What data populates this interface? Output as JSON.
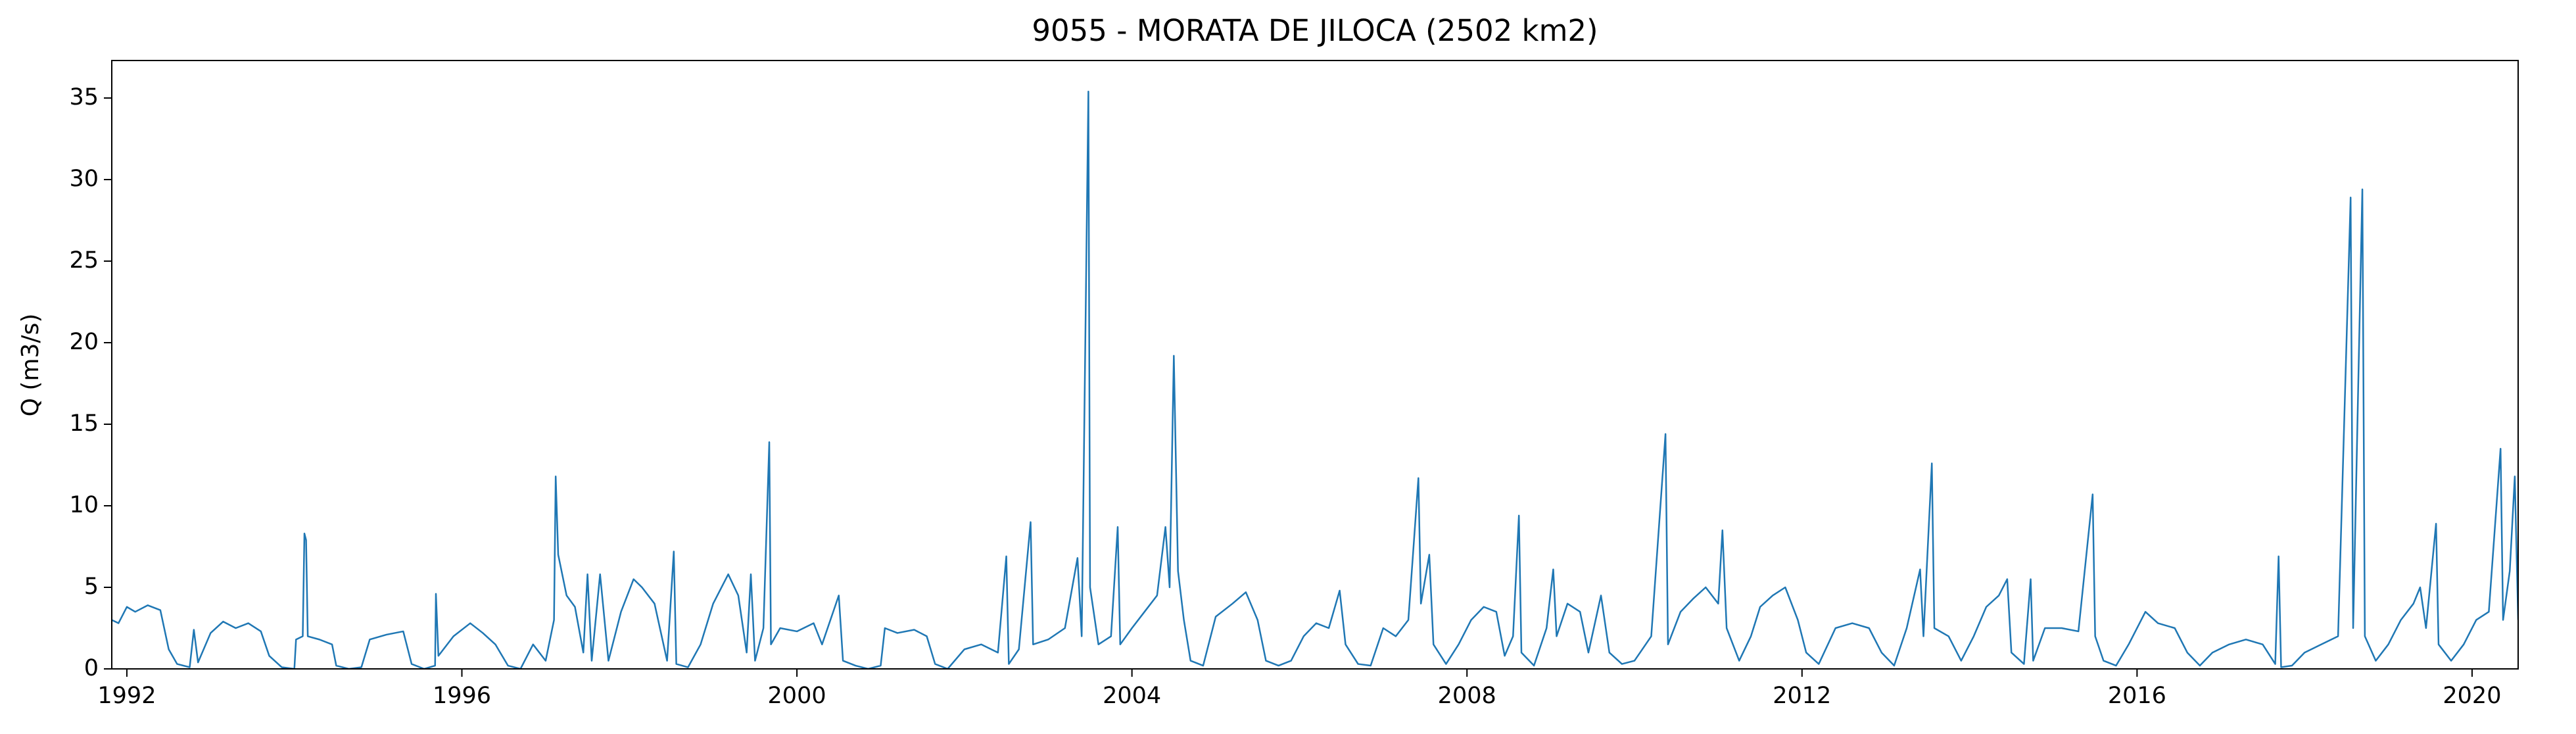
{
  "chart_data": {
    "type": "line",
    "title": "9055 - MORATA DE JILOCA (2502 km2)",
    "y_label": "Q (m3/s)",
    "color": "#1f77b4",
    "x": [
      1991.82,
      1991.9,
      1992.0,
      1992.1,
      1992.25,
      1992.4,
      1992.5,
      1992.6,
      1992.75,
      1992.8,
      1992.85,
      1993.0,
      1993.15,
      1993.3,
      1993.45,
      1993.6,
      1993.7,
      1993.85,
      1994.0,
      1994.02,
      1994.1,
      1994.12,
      1994.14,
      1994.16,
      1994.3,
      1994.45,
      1994.5,
      1994.65,
      1994.8,
      1994.9,
      1995.1,
      1995.3,
      1995.4,
      1995.55,
      1995.68,
      1995.69,
      1995.72,
      1995.9,
      1996.1,
      1996.25,
      1996.4,
      1996.55,
      1996.7,
      1996.85,
      1997.0,
      1997.1,
      1997.12,
      1997.15,
      1997.25,
      1997.35,
      1997.45,
      1997.5,
      1997.55,
      1997.65,
      1997.75,
      1997.9,
      1998.05,
      1998.15,
      1998.3,
      1998.45,
      1998.53,
      1998.56,
      1998.7,
      1998.85,
      1999.0,
      1999.18,
      1999.3,
      1999.4,
      1999.45,
      1999.5,
      1999.6,
      1999.67,
      1999.69,
      1999.8,
      2000.0,
      2000.2,
      2000.3,
      2000.5,
      2000.55,
      2000.7,
      2000.85,
      2001.0,
      2001.05,
      2001.2,
      2001.4,
      2001.55,
      2001.65,
      2001.8,
      2002.0,
      2002.2,
      2002.4,
      2002.5,
      2002.53,
      2002.65,
      2002.79,
      2002.82,
      2003.0,
      2003.2,
      2003.35,
      2003.4,
      2003.48,
      2003.5,
      2003.6,
      2003.75,
      2003.83,
      2003.86,
      2004.0,
      2004.15,
      2004.3,
      2004.4,
      2004.45,
      2004.5,
      2004.55,
      2004.62,
      2004.7,
      2004.85,
      2005.0,
      2005.2,
      2005.36,
      2005.5,
      2005.6,
      2005.75,
      2005.9,
      2006.05,
      2006.2,
      2006.35,
      2006.48,
      2006.55,
      2006.7,
      2006.85,
      2007.0,
      2007.15,
      2007.3,
      2007.42,
      2007.45,
      2007.55,
      2007.6,
      2007.75,
      2007.9,
      2008.05,
      2008.2,
      2008.35,
      2008.45,
      2008.55,
      2008.62,
      2008.65,
      2008.8,
      2008.95,
      2009.03,
      2009.07,
      2009.2,
      2009.35,
      2009.45,
      2009.6,
      2009.7,
      2009.85,
      2010.0,
      2010.2,
      2010.37,
      2010.4,
      2010.55,
      2010.7,
      2010.85,
      2011.0,
      2011.05,
      2011.1,
      2011.25,
      2011.39,
      2011.5,
      2011.65,
      2011.8,
      2011.95,
      2012.05,
      2012.2,
      2012.4,
      2012.6,
      2012.8,
      2012.95,
      2013.1,
      2013.25,
      2013.41,
      2013.45,
      2013.55,
      2013.58,
      2013.75,
      2013.9,
      2014.05,
      2014.2,
      2014.35,
      2014.45,
      2014.5,
      2014.65,
      2014.73,
      2014.76,
      2014.9,
      2015.1,
      2015.3,
      2015.47,
      2015.5,
      2015.6,
      2015.75,
      2015.9,
      2016.1,
      2016.25,
      2016.45,
      2016.6,
      2016.75,
      2016.9,
      2017.1,
      2017.3,
      2017.5,
      2017.65,
      2017.69,
      2017.72,
      2017.85,
      2018.0,
      2018.2,
      2018.4,
      2018.55,
      2018.58,
      2018.69,
      2018.72,
      2018.85,
      2019.0,
      2019.15,
      2019.3,
      2019.38,
      2019.45,
      2019.57,
      2019.6,
      2019.75,
      2019.9,
      2020.05,
      2020.2,
      2020.34,
      2020.37,
      2020.45,
      2020.51,
      2020.55
    ],
    "values": [
      3.0,
      2.8,
      3.8,
      3.5,
      3.9,
      3.6,
      1.2,
      0.3,
      0.1,
      2.4,
      0.4,
      2.2,
      2.9,
      2.5,
      2.8,
      2.3,
      0.8,
      0.1,
      0.0,
      1.8,
      2.0,
      8.3,
      7.9,
      2.0,
      1.8,
      1.5,
      0.2,
      0.0,
      0.1,
      1.8,
      2.1,
      2.3,
      0.3,
      0.0,
      0.2,
      4.6,
      0.8,
      2.0,
      2.8,
      2.2,
      1.5,
      0.2,
      0.0,
      1.5,
      0.5,
      3.0,
      11.8,
      7.0,
      4.5,
      3.8,
      1.0,
      5.8,
      0.5,
      5.8,
      0.5,
      3.5,
      5.5,
      5.0,
      4.0,
      0.5,
      7.2,
      0.3,
      0.1,
      1.5,
      4.0,
      5.8,
      4.5,
      1.0,
      5.8,
      0.5,
      2.5,
      13.9,
      1.5,
      2.5,
      2.3,
      2.8,
      1.5,
      4.5,
      0.5,
      0.2,
      0.0,
      0.2,
      2.5,
      2.2,
      2.4,
      2.0,
      0.3,
      0.0,
      1.2,
      1.5,
      1.0,
      6.9,
      0.3,
      1.2,
      9.0,
      1.5,
      1.8,
      2.5,
      6.8,
      2.0,
      35.4,
      5.0,
      1.5,
      2.0,
      8.7,
      1.5,
      2.5,
      3.5,
      4.5,
      8.7,
      5.0,
      19.2,
      6.0,
      3.0,
      0.5,
      0.2,
      3.2,
      4.0,
      4.7,
      3.0,
      0.5,
      0.2,
      0.5,
      2.0,
      2.8,
      2.5,
      4.8,
      1.5,
      0.3,
      0.2,
      2.5,
      2.0,
      3.0,
      11.7,
      4.0,
      7.0,
      1.5,
      0.3,
      1.5,
      3.0,
      3.8,
      3.5,
      0.8,
      2.0,
      9.4,
      1.0,
      0.2,
      2.5,
      6.1,
      2.0,
      4.0,
      3.5,
      1.0,
      4.5,
      1.0,
      0.3,
      0.5,
      2.0,
      14.4,
      1.5,
      3.5,
      4.3,
      5.0,
      4.0,
      8.5,
      2.5,
      0.5,
      2.0,
      3.8,
      4.5,
      5.0,
      3.0,
      1.0,
      0.3,
      2.5,
      2.8,
      2.5,
      1.0,
      0.2,
      2.5,
      6.1,
      2.0,
      12.6,
      2.5,
      2.0,
      0.5,
      2.0,
      3.8,
      4.5,
      5.5,
      1.0,
      0.3,
      5.5,
      0.5,
      2.5,
      2.5,
      2.3,
      10.7,
      2.0,
      0.5,
      0.2,
      1.5,
      3.5,
      2.8,
      2.5,
      1.0,
      0.2,
      1.0,
      1.5,
      1.8,
      1.5,
      0.3,
      6.9,
      0.1,
      0.2,
      1.0,
      1.5,
      2.0,
      28.9,
      2.5,
      29.4,
      2.0,
      0.5,
      1.5,
      3.0,
      4.0,
      5.0,
      2.5,
      8.9,
      1.5,
      0.5,
      1.5,
      3.0,
      3.5,
      13.5,
      3.0,
      6.0,
      11.8,
      3.0
    ],
    "xlim": [
      1991.82,
      2020.55
    ],
    "xticks": [
      1992,
      1996,
      2000,
      2004,
      2008,
      2012,
      2016,
      2020
    ],
    "ylim": [
      0,
      37.3
    ],
    "yticks": [
      0,
      5,
      10,
      15,
      20,
      25,
      30,
      35
    ]
  }
}
